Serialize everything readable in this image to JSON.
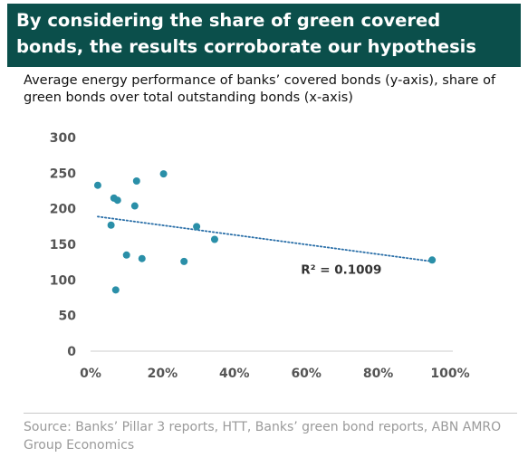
{
  "header": {
    "title": "By considering the share of green covered bonds, the results corroborate our hypothesis"
  },
  "subtitle": "Average energy performance of banks’ covered bonds (y-axis), share of green bonds over total outstanding bonds (x-axis)",
  "source": "Source: Banks’ Pillar 3 reports, HTT, Banks’ green bond reports, ABN AMRO Group Economics",
  "colors": {
    "header_bg": "#0b4f4b",
    "point": "#2a8fa8",
    "trendline": "#2a6fa8"
  },
  "chart_data": {
    "type": "scatter",
    "title": "",
    "xlabel": "",
    "ylabel": "",
    "xlim": [
      0,
      100
    ],
    "ylim": [
      0,
      300
    ],
    "x_ticks": [
      0,
      20,
      40,
      60,
      80,
      100
    ],
    "x_tick_labels": [
      "0%",
      "20%",
      "40%",
      "60%",
      "80%",
      "100%"
    ],
    "y_ticks": [
      0,
      50,
      100,
      150,
      200,
      250,
      300
    ],
    "y_tick_labels": [
      "0",
      "50",
      "100",
      "150",
      "200",
      "250",
      "300"
    ],
    "grid": false,
    "points": [
      {
        "x": 2,
        "y": 233
      },
      {
        "x": 5.7,
        "y": 177
      },
      {
        "x": 6.5,
        "y": 215
      },
      {
        "x": 7,
        "y": 86
      },
      {
        "x": 7.5,
        "y": 212
      },
      {
        "x": 10,
        "y": 135
      },
      {
        "x": 12.3,
        "y": 204
      },
      {
        "x": 12.8,
        "y": 239
      },
      {
        "x": 14.3,
        "y": 130
      },
      {
        "x": 20.3,
        "y": 249
      },
      {
        "x": 26,
        "y": 126
      },
      {
        "x": 29.5,
        "y": 175
      },
      {
        "x": 34.5,
        "y": 157
      },
      {
        "x": 95,
        "y": 128
      }
    ],
    "trendline": {
      "x": [
        2,
        95
      ],
      "y": [
        189,
        126
      ],
      "style": "dotted"
    },
    "annotation": "R² = 0.1009"
  }
}
